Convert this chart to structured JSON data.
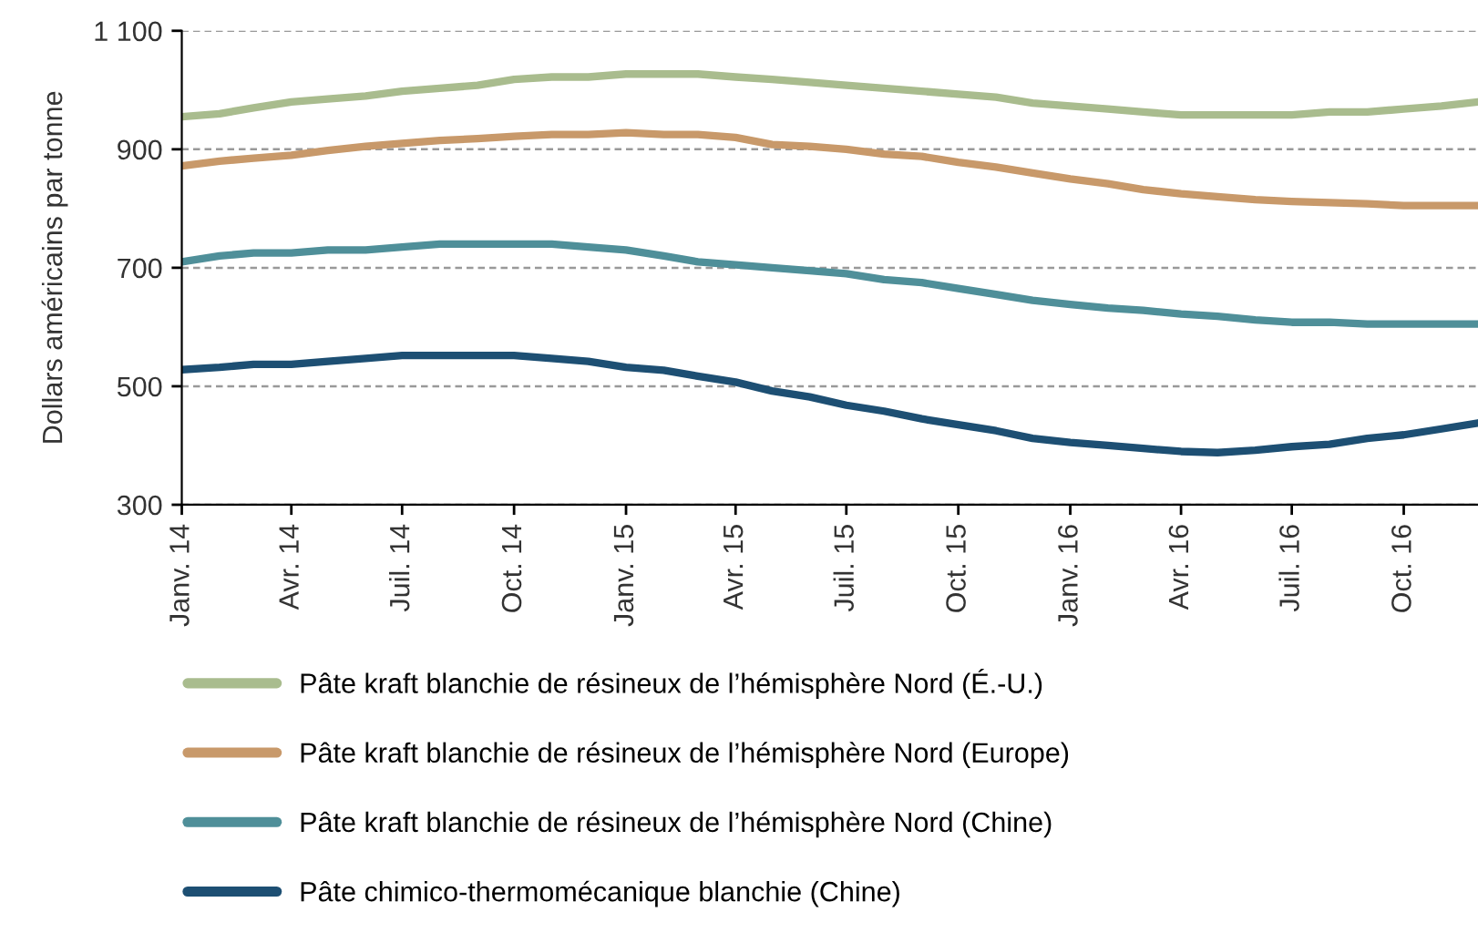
{
  "chart_data": {
    "type": "line",
    "ylabel": "Dollars américains par tonne",
    "x": [
      "2014-01",
      "2014-02",
      "2014-03",
      "2014-04",
      "2014-05",
      "2014-06",
      "2014-07",
      "2014-08",
      "2014-09",
      "2014-10",
      "2014-11",
      "2014-12",
      "2015-01",
      "2015-02",
      "2015-03",
      "2015-04",
      "2015-05",
      "2015-06",
      "2015-07",
      "2015-08",
      "2015-09",
      "2015-10",
      "2015-11",
      "2015-12",
      "2016-01",
      "2016-02",
      "2016-03",
      "2016-04",
      "2016-05",
      "2016-06",
      "2016-07",
      "2016-08",
      "2016-09",
      "2016-10",
      "2016-11",
      "2016-12"
    ],
    "series": [
      {
        "name": "Pâte kraft blanchie de résineux de l’hémisphère Nord (É.-U.)",
        "color": "#a9bc8e",
        "values": [
          955,
          960,
          970,
          980,
          985,
          990,
          998,
          1003,
          1008,
          1018,
          1022,
          1022,
          1027,
          1027,
          1027,
          1022,
          1018,
          1013,
          1008,
          1003,
          998,
          993,
          988,
          978,
          973,
          968,
          963,
          958,
          958,
          958,
          958,
          963,
          963,
          968,
          973,
          980
        ]
      },
      {
        "name": "Pâte kraft blanchie de résineux de l’hémisphère Nord (Europe)",
        "color": "#c8996a",
        "values": [
          872,
          880,
          885,
          890,
          898,
          905,
          910,
          915,
          918,
          922,
          925,
          925,
          928,
          925,
          925,
          920,
          908,
          905,
          900,
          892,
          888,
          878,
          870,
          860,
          850,
          842,
          832,
          825,
          820,
          815,
          812,
          810,
          808,
          805,
          805,
          805
        ]
      },
      {
        "name": "Pâte kraft blanchie de résineux de l’hémisphère Nord (Chine)",
        "color": "#4f8f99",
        "values": [
          710,
          720,
          725,
          725,
          730,
          730,
          735,
          740,
          740,
          740,
          740,
          735,
          730,
          720,
          710,
          705,
          700,
          695,
          690,
          680,
          675,
          665,
          655,
          645,
          638,
          632,
          628,
          622,
          618,
          612,
          608,
          608,
          605,
          605,
          605,
          605
        ]
      },
      {
        "name": "Pâte chimico-thermomécanique blanchie (Chine)",
        "color": "#1d4f73",
        "values": [
          528,
          532,
          537,
          537,
          542,
          547,
          552,
          552,
          552,
          552,
          547,
          542,
          532,
          527,
          517,
          507,
          492,
          482,
          468,
          458,
          445,
          435,
          425,
          412,
          405,
          400,
          395,
          390,
          388,
          392,
          398,
          402,
          412,
          418,
          428,
          438
        ]
      }
    ],
    "xlim": [
      "2014-01",
      "2016-12"
    ],
    "xticks": [
      {
        "value": "2014-01",
        "label": "Janv. 14"
      },
      {
        "value": "2014-04",
        "label": "Avr. 14"
      },
      {
        "value": "2014-07",
        "label": "Juil. 14"
      },
      {
        "value": "2014-10",
        "label": "Oct. 14"
      },
      {
        "value": "2015-01",
        "label": "Janv. 15"
      },
      {
        "value": "2015-04",
        "label": "Avr. 15"
      },
      {
        "value": "2015-07",
        "label": "Juil. 15"
      },
      {
        "value": "2015-10",
        "label": "Oct. 15"
      },
      {
        "value": "2016-01",
        "label": "Janv. 16"
      },
      {
        "value": "2016-04",
        "label": "Avr. 16"
      },
      {
        "value": "2016-07",
        "label": "Juil. 16"
      },
      {
        "value": "2016-10",
        "label": "Oct. 16"
      }
    ],
    "ylim": [
      300,
      1100
    ],
    "yticks": [
      300,
      500,
      700,
      900,
      {
        "value": 1100,
        "label": "1 100"
      }
    ],
    "grid": "y",
    "legend": "bottom",
    "marker": "none",
    "line_style": "solid"
  }
}
